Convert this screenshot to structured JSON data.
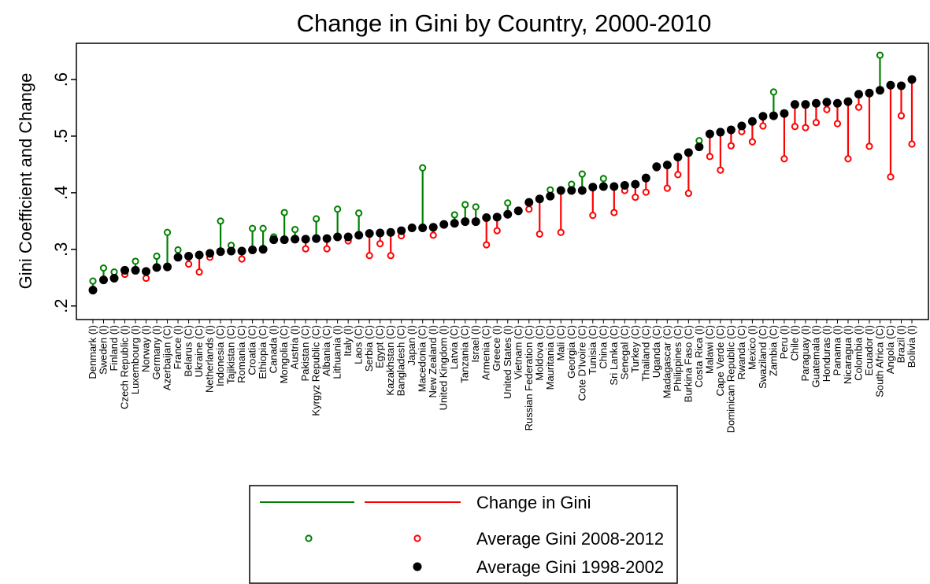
{
  "chart_data": {
    "type": "stem",
    "title": "Change in Gini by Country, 2000-2010",
    "y_label": "Gini Coefficient and Change",
    "change_label": "Change in Gini",
    "rise_color": "#008000",
    "fall_color": "#ff0000",
    "categories": [
      "Denmark (I)",
      "Sweden (I)",
      "Finland (I)",
      "Czech Republic (I)",
      "Luxembourg (I)",
      "Norway (I)",
      "Germany (I)",
      "Azerbaijan (C)",
      "France (I)",
      "Belarus (C)",
      "Ukraine (C)",
      "Netherlands (I)",
      "Indonesia (C)",
      "Tajikistan (C)",
      "Romania (C)",
      "Croatia (C)",
      "Ethiopia (C)",
      "Canada (I)",
      "Mongolia (C)",
      "Austria (I)",
      "Pakistan (C)",
      "Kyrgyz Republic (C)",
      "Albania (C)",
      "Lithuania (I)",
      "Italy (I)",
      "Laos (C)",
      "Serbia (C)",
      "Egypt (C)",
      "Kazakhstan (C)",
      "Bangladesh (C)",
      "Japan (I)",
      "Macedonia (C)",
      "New Zealand (I)",
      "United Kingdom (I)",
      "Latvia (C)",
      "Tanzania (C)",
      "Israel (I)",
      "Armenia (C)",
      "Greece (I)",
      "United States (I)",
      "Vietnam (C)",
      "Russian Federation (C)",
      "Moldova (C)",
      "Mauritania (C)",
      "Mali (C)",
      "Georgia (C)",
      "Cote D'Ivoire (C)",
      "Tunisia (C)",
      "China (C)",
      "Sri Lanka (C)",
      "Senegal (C)",
      "Turkey (C)",
      "Thailand (C)",
      "Uganda (C)",
      "Madagascar (C)",
      "Philippines (C)",
      "Burkina Faso (C)",
      "Costa Rica (I)",
      "Malawi (C)",
      "Cape Verde (C)",
      "Dominican Republic (C)",
      "Rwanda (C)",
      "Mexico (I)",
      "Swaziland (C)",
      "Zambia (C)",
      "Peru (I)",
      "Chile (I)",
      "Paraguay (I)",
      "Guatemala (I)",
      "Honduras (I)",
      "Panama (I)",
      "Nicaragua (I)",
      "Colombia (I)",
      "Ecuador (I)",
      "South Africa (C)",
      "Angola (C)",
      "Brazil (I)",
      "Bolivia (I)"
    ],
    "series": [
      {
        "name": "Average Gini 1998-2002",
        "color": "#000000",
        "values": [
          0.228,
          0.246,
          0.249,
          0.263,
          0.263,
          0.261,
          0.268,
          0.269,
          0.286,
          0.288,
          0.29,
          0.293,
          0.296,
          0.297,
          0.297,
          0.299,
          0.3,
          0.317,
          0.317,
          0.318,
          0.318,
          0.319,
          0.319,
          0.322,
          0.322,
          0.325,
          0.328,
          0.329,
          0.33,
          0.333,
          0.338,
          0.338,
          0.339,
          0.344,
          0.346,
          0.349,
          0.349,
          0.356,
          0.357,
          0.362,
          0.368,
          0.383,
          0.389,
          0.394,
          0.404,
          0.404,
          0.404,
          0.41,
          0.411,
          0.411,
          0.413,
          0.415,
          0.426,
          0.446,
          0.449,
          0.463,
          0.471,
          0.481,
          0.504,
          0.507,
          0.511,
          0.518,
          0.526,
          0.535,
          0.536,
          0.54,
          0.556,
          0.556,
          0.558,
          0.56,
          0.558,
          0.561,
          0.574,
          0.576,
          0.581,
          0.59,
          0.589,
          0.6
        ]
      },
      {
        "name": "Average Gini 2008-2012",
        "values": [
          0.244,
          0.267,
          0.26,
          0.256,
          0.279,
          0.249,
          0.288,
          0.33,
          0.299,
          0.274,
          0.26,
          0.286,
          0.35,
          0.307,
          0.283,
          0.337,
          0.337,
          0.322,
          0.365,
          0.335,
          0.301,
          0.354,
          0.301,
          0.371,
          0.315,
          0.364,
          0.289,
          0.31,
          0.289,
          0.324,
          0.339,
          0.444,
          0.325,
          0.345,
          0.361,
          0.379,
          0.375,
          0.308,
          0.333,
          0.382,
          0.368,
          0.371,
          0.327,
          0.405,
          0.33,
          0.415,
          0.433,
          0.36,
          0.425,
          0.365,
          0.404,
          0.392,
          0.401,
          0.444,
          0.408,
          0.432,
          0.399,
          0.492,
          0.464,
          0.44,
          0.483,
          0.508,
          0.49,
          0.518,
          0.578,
          0.46,
          0.517,
          0.515,
          0.524,
          0.547,
          0.522,
          0.46,
          0.551,
          0.482,
          0.643,
          0.428,
          0.536,
          0.486
        ]
      }
    ],
    "ylim": [
      0.176,
      0.664
    ],
    "yticks": [
      {
        "value": 0.2,
        "label": ".2"
      },
      {
        "value": 0.3,
        "label": ".3"
      },
      {
        "value": 0.4,
        "label": ".4"
      },
      {
        "value": 0.5,
        "label": ".5"
      },
      {
        "value": 0.6,
        "label": ".6"
      }
    ],
    "grid": false
  }
}
